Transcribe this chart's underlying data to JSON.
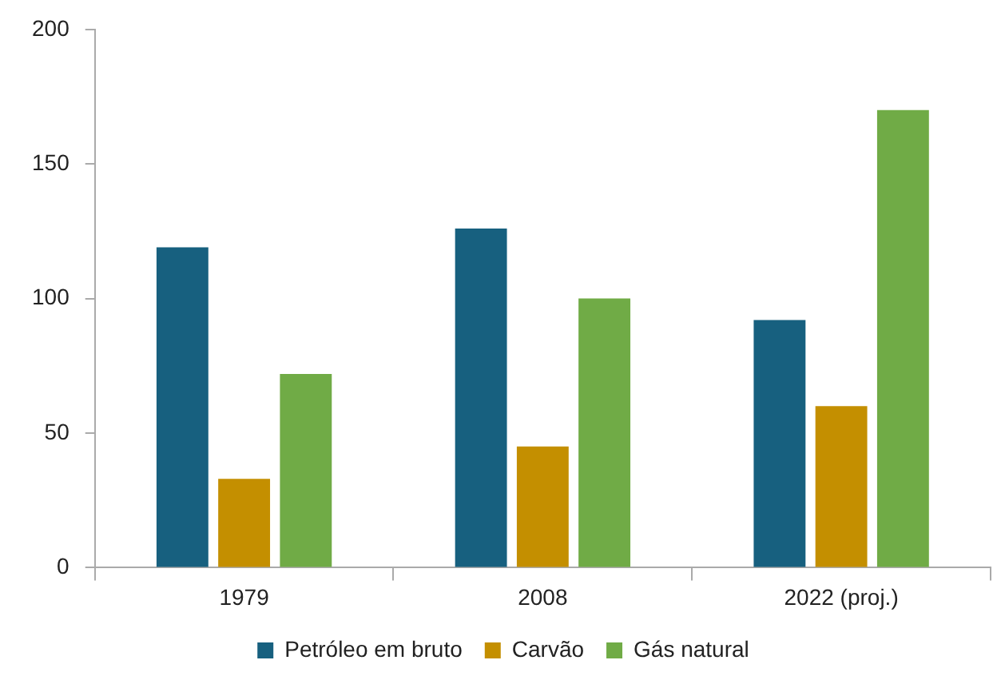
{
  "chart_data": {
    "type": "bar",
    "categories": [
      "1979",
      "2008",
      "2022 (proj.)"
    ],
    "series": [
      {
        "name": "Petróleo em bruto",
        "color": "#17607f",
        "values": [
          119,
          126,
          92
        ]
      },
      {
        "name": "Carvão",
        "color": "#c48f00",
        "values": [
          33,
          45,
          60
        ]
      },
      {
        "name": "Gás natural",
        "color": "#70ab46",
        "values": [
          72,
          100,
          170
        ]
      }
    ],
    "ylim": [
      0,
      200
    ],
    "yticks": [
      0,
      50,
      100,
      150,
      200
    ],
    "grid": false,
    "legend": "bottom"
  }
}
